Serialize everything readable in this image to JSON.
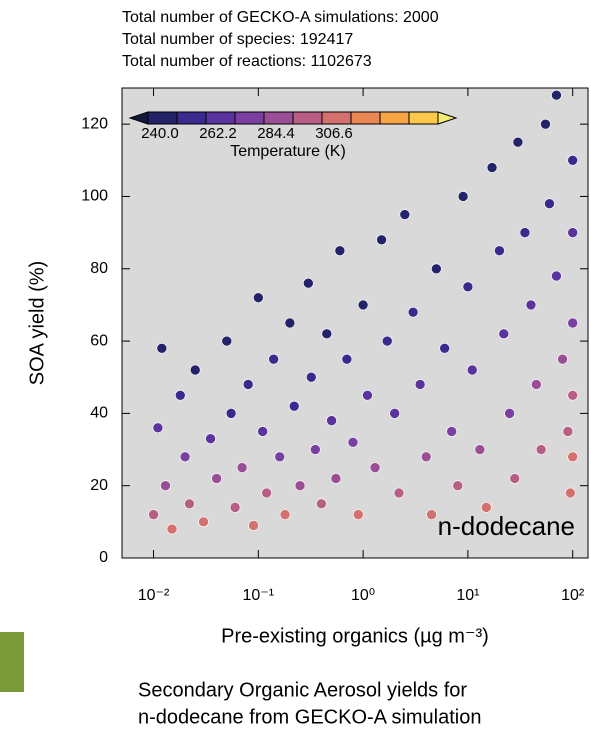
{
  "chart_data": {
    "type": "scatter",
    "header_lines": [
      "Total number of GECKO-A simulations: 2000",
      "Total number of species: 192417",
      "Total number of reactions: 1102673"
    ],
    "x_label": "Pre-existing organics (µg m⁻³)",
    "y_label": "SOA yield (%)",
    "annotation": "n-dodecane",
    "caption_lines": [
      "Secondary Organic Aerosol yields for",
      "n-dodecane from GECKO-A simulation"
    ],
    "x_log": true,
    "xlim": [
      0.005,
      140
    ],
    "ylim": [
      0,
      130
    ],
    "xticks": [
      {
        "value": 0.01,
        "label": "10⁻²"
      },
      {
        "value": 0.1,
        "label": "10⁻¹"
      },
      {
        "value": 1,
        "label": "10⁰"
      },
      {
        "value": 10,
        "label": "10¹"
      },
      {
        "value": 100,
        "label": "10²"
      }
    ],
    "yticks": [
      0,
      20,
      40,
      60,
      80,
      100,
      120
    ],
    "colorbar": {
      "title": "Temperature (K)",
      "ticks": [
        {
          "value": 240,
          "label": "240.0"
        },
        {
          "value": 262.2,
          "label": "262.2"
        },
        {
          "value": 284.4,
          "label": "284.4"
        },
        {
          "value": 306.6,
          "label": "306.6"
        }
      ],
      "colors": [
        "#14183f",
        "#23236a",
        "#3a2a8e",
        "#5b339e",
        "#7a3fa0",
        "#9a4e95",
        "#b85e84",
        "#d4706e",
        "#ea8855",
        "#f8a545",
        "#fdc84c",
        "#f3ec6e"
      ]
    },
    "x": [
      0.01,
      0.011,
      0.012,
      0.013,
      0.015,
      0.018,
      0.02,
      0.022,
      0.025,
      0.03,
      0.035,
      0.04,
      0.05,
      0.055,
      0.06,
      0.07,
      0.08,
      0.09,
      0.1,
      0.11,
      0.12,
      0.14,
      0.16,
      0.18,
      0.2,
      0.22,
      0.25,
      0.3,
      0.32,
      0.35,
      0.4,
      0.45,
      0.5,
      0.55,
      0.6,
      0.7,
      0.8,
      0.9,
      1.0,
      1.1,
      1.3,
      1.5,
      1.7,
      2.0,
      2.2,
      2.5,
      3,
      3.5,
      4,
      4.5,
      5,
      6,
      7,
      8,
      9,
      10,
      11,
      13,
      15,
      17,
      20,
      22,
      25,
      28,
      30,
      35,
      40,
      45,
      50,
      55,
      60,
      70,
      80,
      90,
      95,
      70,
      100,
      100,
      100,
      100,
      100
    ],
    "values": [
      12,
      36,
      58,
      20,
      8,
      45,
      28,
      15,
      52,
      10,
      33,
      22,
      60,
      40,
      14,
      25,
      48,
      9,
      72,
      35,
      18,
      55,
      28,
      12,
      65,
      42,
      20,
      76,
      50,
      30,
      15,
      62,
      38,
      22,
      85,
      55,
      32,
      12,
      70,
      45,
      25,
      88,
      60,
      40,
      18,
      95,
      68,
      48,
      28,
      12,
      80,
      58,
      35,
      20,
      100,
      75,
      52,
      30,
      14,
      108,
      85,
      62,
      40,
      22,
      115,
      90,
      70,
      48,
      30,
      120,
      98,
      78,
      55,
      35,
      18,
      128,
      110,
      90,
      65,
      45,
      28
    ],
    "temperature": [
      300,
      265,
      250,
      285,
      310,
      258,
      275,
      300,
      248,
      315,
      270,
      290,
      245,
      262,
      305,
      285,
      255,
      312,
      242,
      270,
      298,
      252,
      280,
      308,
      246,
      262,
      292,
      243,
      258,
      278,
      305,
      250,
      270,
      294,
      241,
      256,
      278,
      310,
      248,
      266,
      290,
      243,
      256,
      272,
      302,
      242,
      252,
      268,
      288,
      312,
      248,
      262,
      282,
      300,
      243,
      255,
      270,
      288,
      310,
      244,
      255,
      266,
      284,
      302,
      246,
      258,
      270,
      285,
      300,
      248,
      262,
      272,
      288,
      302,
      314,
      245,
      258,
      268,
      282,
      296,
      310
    ]
  }
}
